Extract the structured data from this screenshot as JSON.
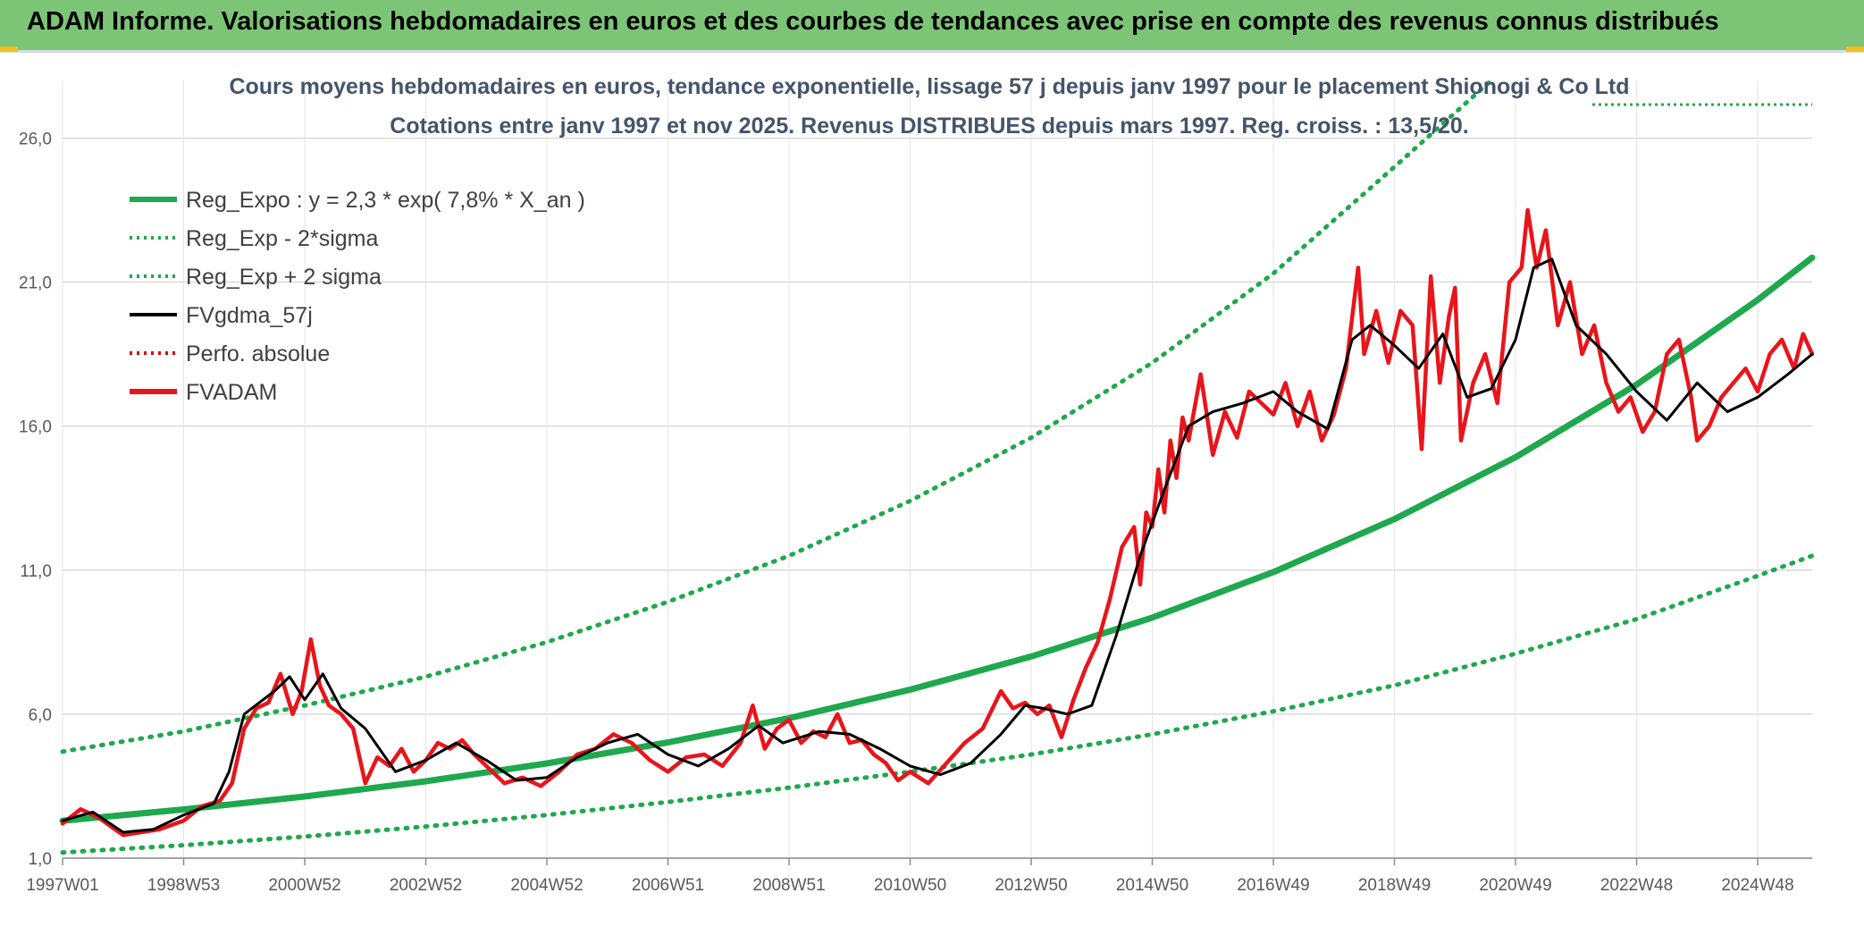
{
  "header": {
    "title": "ADAM Informe. Valorisations hebdomadaires en euros et des courbes de tendances avec prise en compte des revenus connus distribués"
  },
  "chart_data": {
    "type": "line",
    "title": "Cours moyens hebdomadaires en euros, tendance exponentielle, lissage 57 j depuis janv 1997 pour le placement Shionogi & Co Ltd",
    "subtitle": "Cotations entre janv 1997 et nov 2025. Revenus DISTRIBUES depuis mars 1997. Reg. croiss. : 13,5/20.",
    "xlabel": "",
    "ylabel": "",
    "xlim": [
      1997.0,
      2025.9
    ],
    "ylim": [
      1.0,
      28.0
    ],
    "y_ticks": [
      1.0,
      6.0,
      11.0,
      16.0,
      21.0,
      26.0
    ],
    "y_tick_labels": [
      "1,0",
      "6,0",
      "11,0",
      "16,0",
      "21,0",
      "26,0"
    ],
    "x_ticks": [
      1997.0,
      1999.0,
      2001.0,
      2003.0,
      2005.0,
      2007.0,
      2009.0,
      2011.0,
      2013.0,
      2015.0,
      2017.0,
      2019.0,
      2021.0,
      2023.0,
      2025.0
    ],
    "x_tick_labels": [
      "1997W01",
      "1998W53",
      "2000W52",
      "2002W52",
      "2004W52",
      "2006W51",
      "2008W51",
      "2010W50",
      "2012W50",
      "2014W50",
      "2016W49",
      "2018W49",
      "2020W49",
      "2022W48",
      "2024W48"
    ],
    "grid": true,
    "legend_position": "top-left",
    "series": [
      {
        "name": "Reg_Expo : y = 2,3 * exp( 7,8% *  X_an )",
        "color": "#1fa84e",
        "style": "solid",
        "x": [
          1997,
          1999,
          2001,
          2003,
          2005,
          2007,
          2009,
          2011,
          2013,
          2015,
          2017,
          2019,
          2021,
          2023,
          2025,
          2025.9
        ],
        "values": [
          2.3,
          2.69,
          3.14,
          3.67,
          4.29,
          5.02,
          5.86,
          6.85,
          8.0,
          9.35,
          10.93,
          12.77,
          14.92,
          17.44,
          20.38,
          21.85
        ]
      },
      {
        "name": "Reg_Exp - 2*sigma",
        "color": "#1fa84e",
        "style": "dotted",
        "x": [
          1997,
          1999,
          2001,
          2003,
          2005,
          2007,
          2009,
          2011,
          2013,
          2015,
          2017,
          2019,
          2021,
          2023,
          2025,
          2025.9
        ],
        "values": [
          1.2,
          1.45,
          1.75,
          2.1,
          2.5,
          2.95,
          3.45,
          4.0,
          4.6,
          5.3,
          6.1,
          7.0,
          8.1,
          9.3,
          10.8,
          11.5
        ]
      },
      {
        "name": "Reg_Exp + 2 sigma",
        "color": "#1fa84e",
        "style": "dotted",
        "x": [
          1997,
          1999,
          2001,
          2003,
          2005,
          2007,
          2009,
          2011,
          2013,
          2015,
          2017,
          2019,
          2020.6
        ],
        "values": [
          4.7,
          5.4,
          6.3,
          7.3,
          8.5,
          9.9,
          11.5,
          13.4,
          15.6,
          18.2,
          21.3,
          25.0,
          28.0
        ]
      },
      {
        "name": "FVgdma_57j",
        "color": "#000000",
        "style": "solid",
        "x": [
          1997.0,
          1997.5,
          1998.0,
          1998.5,
          1999.0,
          1999.5,
          1999.75,
          2000.0,
          2000.5,
          2000.75,
          2001.0,
          2001.3,
          2001.6,
          2002.0,
          2002.5,
          2003.0,
          2003.5,
          2004.0,
          2004.5,
          2005.0,
          2005.5,
          2006.0,
          2006.5,
          2007.0,
          2007.5,
          2008.0,
          2008.5,
          2008.9,
          2009.5,
          2010.0,
          2010.5,
          2011.0,
          2011.5,
          2012.0,
          2012.5,
          2012.9,
          2013.2,
          2013.6,
          2014.0,
          2014.4,
          2014.8,
          2015.2,
          2015.6,
          2016.0,
          2016.5,
          2017.0,
          2017.4,
          2017.9,
          2018.3,
          2018.6,
          2019.0,
          2019.4,
          2019.8,
          2020.2,
          2020.6,
          2021.0,
          2021.3,
          2021.6,
          2022.0,
          2022.5,
          2023.0,
          2023.5,
          2024.0,
          2024.5,
          2025.0,
          2025.5,
          2025.9
        ],
        "values": [
          2.3,
          2.6,
          1.9,
          2.0,
          2.5,
          2.9,
          4.0,
          6.0,
          6.8,
          7.3,
          6.5,
          7.4,
          6.2,
          5.5,
          4.0,
          4.4,
          5.0,
          4.4,
          3.7,
          3.8,
          4.5,
          5.0,
          5.3,
          4.6,
          4.2,
          4.8,
          5.6,
          5.0,
          5.4,
          5.3,
          4.8,
          4.2,
          3.9,
          4.3,
          5.3,
          6.3,
          6.2,
          6.0,
          6.3,
          8.7,
          11.5,
          13.8,
          16.0,
          16.5,
          16.8,
          17.2,
          16.5,
          15.9,
          19.0,
          19.5,
          18.8,
          18.0,
          19.2,
          17.0,
          17.3,
          19.0,
          21.5,
          21.8,
          19.5,
          18.5,
          17.2,
          16.2,
          17.5,
          16.5,
          17.0,
          17.8,
          18.5
        ]
      },
      {
        "name": "Perfo. absolue",
        "color": "#e00000",
        "style": "dotted",
        "x": [],
        "values": []
      },
      {
        "name": "FVADAM",
        "color": "#e8151b",
        "style": "solid",
        "x": [
          1997.0,
          1997.3,
          1997.6,
          1998.0,
          1998.3,
          1998.6,
          1999.0,
          1999.3,
          1999.6,
          1999.8,
          2000.0,
          2000.2,
          2000.4,
          2000.6,
          2000.8,
          2000.95,
          2001.1,
          2001.25,
          2001.4,
          2001.6,
          2001.8,
          2002.0,
          2002.2,
          2002.4,
          2002.6,
          2002.8,
          2003.0,
          2003.2,
          2003.4,
          2003.6,
          2003.8,
          2004.0,
          2004.3,
          2004.6,
          2004.9,
          2005.2,
          2005.5,
          2005.8,
          2006.1,
          2006.4,
          2006.7,
          2007.0,
          2007.3,
          2007.6,
          2007.9,
          2008.2,
          2008.4,
          2008.6,
          2008.8,
          2009.0,
          2009.2,
          2009.4,
          2009.6,
          2009.8,
          2010.0,
          2010.2,
          2010.4,
          2010.6,
          2010.8,
          2011.0,
          2011.3,
          2011.6,
          2011.9,
          2012.2,
          2012.5,
          2012.7,
          2012.9,
          2013.1,
          2013.3,
          2013.5,
          2013.7,
          2013.9,
          2014.1,
          2014.3,
          2014.5,
          2014.7,
          2014.8,
          2014.9,
          2015.0,
          2015.1,
          2015.2,
          2015.3,
          2015.4,
          2015.5,
          2015.6,
          2015.8,
          2016.0,
          2016.2,
          2016.4,
          2016.6,
          2016.8,
          2017.0,
          2017.2,
          2017.4,
          2017.6,
          2017.8,
          2018.0,
          2018.2,
          2018.4,
          2018.5,
          2018.7,
          2018.9,
          2019.1,
          2019.3,
          2019.45,
          2019.6,
          2019.75,
          2019.9,
          2020.0,
          2020.1,
          2020.3,
          2020.5,
          2020.7,
          2020.9,
          2021.1,
          2021.2,
          2021.35,
          2021.5,
          2021.7,
          2021.9,
          2022.1,
          2022.3,
          2022.5,
          2022.7,
          2022.9,
          2023.1,
          2023.3,
          2023.5,
          2023.7,
          2023.9,
          2024.0,
          2024.2,
          2024.4,
          2024.6,
          2024.8,
          2025.0,
          2025.2,
          2025.4,
          2025.6,
          2025.75,
          2025.9
        ],
        "values": [
          2.2,
          2.7,
          2.4,
          1.8,
          1.9,
          2.0,
          2.3,
          2.8,
          3.0,
          3.6,
          5.5,
          6.2,
          6.4,
          7.4,
          6.0,
          6.8,
          8.6,
          7.0,
          6.3,
          6.0,
          5.5,
          3.6,
          4.5,
          4.2,
          4.8,
          4.0,
          4.4,
          5.0,
          4.8,
          5.1,
          4.6,
          4.2,
          3.6,
          3.8,
          3.5,
          4.0,
          4.6,
          4.8,
          5.3,
          5.0,
          4.4,
          4.0,
          4.5,
          4.6,
          4.2,
          5.0,
          6.3,
          4.8,
          5.5,
          5.8,
          5.0,
          5.4,
          5.2,
          6.0,
          5.0,
          5.1,
          4.6,
          4.3,
          3.7,
          4.0,
          3.6,
          4.3,
          5.0,
          5.5,
          6.8,
          6.2,
          6.4,
          6.0,
          6.3,
          5.2,
          6.5,
          7.6,
          8.5,
          10.0,
          11.8,
          12.5,
          10.5,
          13.0,
          12.5,
          14.5,
          13.0,
          15.5,
          14.2,
          16.3,
          15.5,
          17.8,
          15.0,
          16.5,
          15.6,
          17.2,
          16.8,
          16.4,
          17.5,
          16.0,
          17.2,
          15.5,
          16.4,
          18.0,
          21.5,
          18.5,
          20.0,
          18.2,
          20.0,
          19.5,
          15.2,
          21.2,
          17.5,
          19.8,
          20.8,
          15.5,
          17.5,
          18.5,
          16.8,
          21.0,
          21.5,
          23.5,
          21.5,
          22.8,
          19.5,
          21.0,
          18.5,
          19.5,
          17.5,
          16.5,
          17.0,
          15.8,
          16.5,
          18.5,
          19.0,
          17.0,
          15.5,
          16.0,
          17.0,
          17.5,
          18.0,
          17.2,
          18.5,
          19.0,
          18.0,
          19.2,
          18.5
        ]
      }
    ]
  }
}
